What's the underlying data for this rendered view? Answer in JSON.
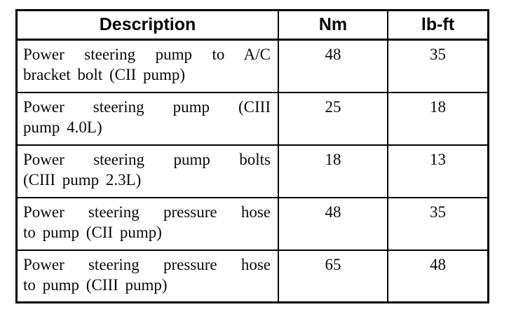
{
  "colors": {
    "background": "#ffffff",
    "border": "#000000",
    "text": "#0a0a0a"
  },
  "table": {
    "headers": [
      "Description",
      "Nm",
      "lb-ft"
    ],
    "rows": [
      {
        "description_line1": "Power steering pump to A/C",
        "description_line2": "bracket bolt (CII pump)",
        "nm": "48",
        "lbft": "35"
      },
      {
        "description_line1": "Power steering pump (CIII",
        "description_line2": "pump 4.0L)",
        "nm": "25",
        "lbft": "18"
      },
      {
        "description_line1": "Power steering pump bolts",
        "description_line2": "(CIII pump 2.3L)",
        "nm": "18",
        "lbft": "13"
      },
      {
        "description_line1": "Power steering pressure hose",
        "description_line2": "to pump (CII pump)",
        "nm": "48",
        "lbft": "35"
      },
      {
        "description_line1": "Power steering pressure hose",
        "description_line2": "to pump (CIII pump)",
        "nm": "65",
        "lbft": "48"
      }
    ]
  }
}
